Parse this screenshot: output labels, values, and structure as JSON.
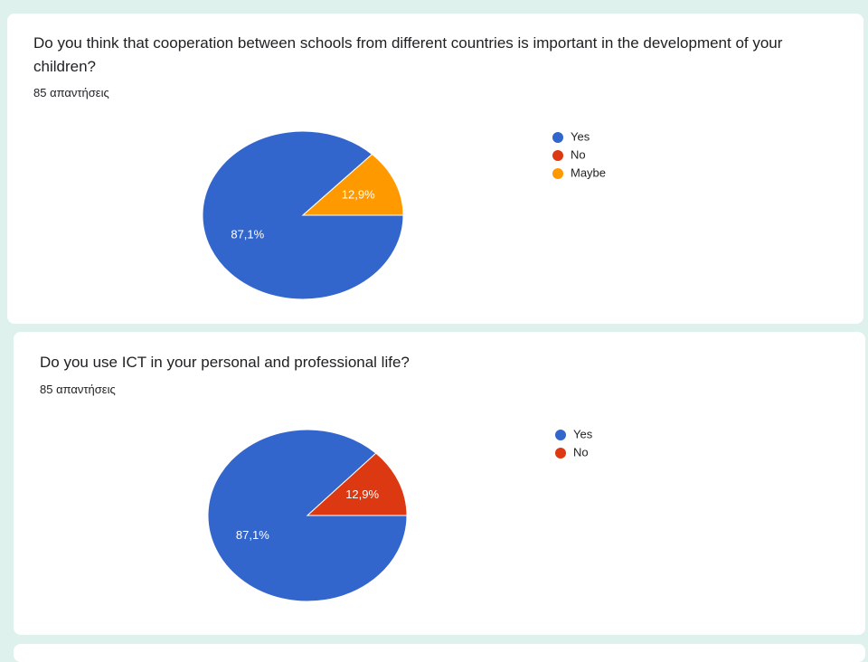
{
  "chart_data": [
    {
      "type": "pie",
      "title": "Do you think that cooperation between schools from different countries is important in the development of your children?",
      "subtitle": "85 απαντήσεις",
      "categories": [
        "Yes",
        "No",
        "Maybe"
      ],
      "values": [
        87.1,
        0,
        12.9
      ],
      "value_labels": [
        "87,1%",
        null,
        "12,9%"
      ],
      "colors": [
        "#3366cc",
        "#dc3912",
        "#ff9900"
      ]
    },
    {
      "type": "pie",
      "title": "Do you use ICT in your personal and professional life?",
      "subtitle": "85 απαντήσεις",
      "categories": [
        "Yes",
        "No"
      ],
      "values": [
        87.1,
        12.9
      ],
      "value_labels": [
        "87,1%",
        "12,9%"
      ],
      "colors": [
        "#3366cc",
        "#dc3912"
      ]
    }
  ]
}
